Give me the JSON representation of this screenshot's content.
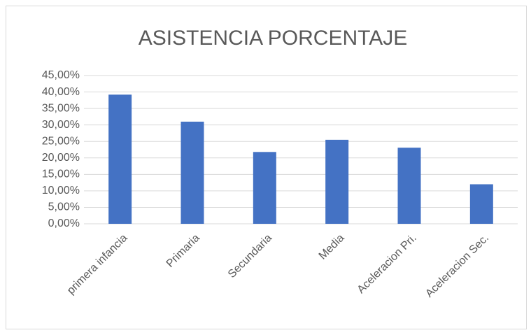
{
  "chart_data": {
    "type": "bar",
    "title": "ASISTENCIA PORCENTAJE",
    "categories": [
      "primera infancia",
      "Primaria",
      "Secundaria",
      "Media",
      "Aceleracion Pri.",
      "Aceleracion Sec."
    ],
    "values": [
      39.2,
      31,
      21.8,
      25.5,
      23.1,
      12
    ],
    "color": "#4472c4",
    "ylim": [
      0,
      45
    ],
    "yticks": [
      {
        "value": 0,
        "label": "0,00%"
      },
      {
        "value": 5,
        "label": "5,00%"
      },
      {
        "value": 10,
        "label": "10,00%"
      },
      {
        "value": 15,
        "label": "15,00%"
      },
      {
        "value": 20,
        "label": "20,00%"
      },
      {
        "value": 25,
        "label": "25,00%"
      },
      {
        "value": 30,
        "label": "30,00%"
      },
      {
        "value": 35,
        "label": "35,00%"
      },
      {
        "value": 40,
        "label": "40,00%"
      },
      {
        "value": 45,
        "label": "45,00%"
      }
    ],
    "grid": true
  }
}
